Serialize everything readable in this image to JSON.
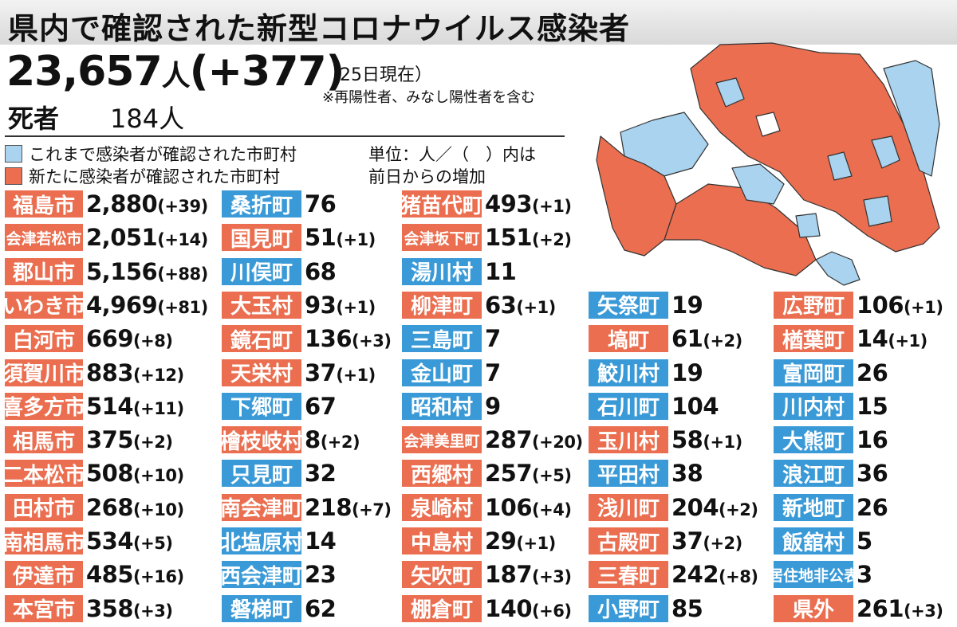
{
  "header": {
    "title": "県内で確認された新型コロナウイルス感染者",
    "total": "23,657",
    "total_unit": "人",
    "total_delta": "(+377)",
    "as_of": "（25日現在）",
    "note": "※再陽性者、みなし陽性者を含む",
    "deaths_label": "死者",
    "deaths_value": "184人"
  },
  "legend": {
    "confirmed_label": "これまで感染者が確認された市町村",
    "new_label": "新たに感染者が確認された市町村",
    "unit_line1": "単位：人／（　）内は",
    "unit_line2": "前日からの増加"
  },
  "colors": {
    "new": "#ea6e4f",
    "confirmed": "#3a9ad7",
    "none": "#ffffff"
  },
  "columns": [
    [
      {
        "name": "福島市",
        "total": "2,880",
        "delta": "(+39)",
        "status": "new"
      },
      {
        "name": "会津若松市",
        "total": "2,051",
        "delta": "(+14)",
        "status": "new"
      },
      {
        "name": "郡山市",
        "total": "5,156",
        "delta": "(+88)",
        "status": "new"
      },
      {
        "name": "いわき市",
        "total": "4,969",
        "delta": "(+81)",
        "status": "new"
      },
      {
        "name": "白河市",
        "total": "669",
        "delta": "(+8)",
        "status": "new"
      },
      {
        "name": "須賀川市",
        "total": "883",
        "delta": "(+12)",
        "status": "new"
      },
      {
        "name": "喜多方市",
        "total": "514",
        "delta": "(+11)",
        "status": "new"
      },
      {
        "name": "相馬市",
        "total": "375",
        "delta": "(+2)",
        "status": "new"
      },
      {
        "name": "二本松市",
        "total": "508",
        "delta": "(+10)",
        "status": "new"
      },
      {
        "name": "田村市",
        "total": "268",
        "delta": "(+10)",
        "status": "new"
      },
      {
        "name": "南相馬市",
        "total": "534",
        "delta": "(+5)",
        "status": "new"
      },
      {
        "name": "伊達市",
        "total": "485",
        "delta": "(+16)",
        "status": "new"
      },
      {
        "name": "本宮市",
        "total": "358",
        "delta": "(+3)",
        "status": "new"
      }
    ],
    [
      {
        "name": "桑折町",
        "total": "76",
        "delta": "",
        "status": "confirmed"
      },
      {
        "name": "国見町",
        "total": "51",
        "delta": "(+1)",
        "status": "new"
      },
      {
        "name": "川俣町",
        "total": "68",
        "delta": "",
        "status": "confirmed"
      },
      {
        "name": "大玉村",
        "total": "93",
        "delta": "(+1)",
        "status": "new"
      },
      {
        "name": "鏡石町",
        "total": "136",
        "delta": "(+3)",
        "status": "new"
      },
      {
        "name": "天栄村",
        "total": "37",
        "delta": "(+1)",
        "status": "new"
      },
      {
        "name": "下郷町",
        "total": "67",
        "delta": "",
        "status": "confirmed"
      },
      {
        "name": "檜枝岐村",
        "total": "8",
        "delta": "(+2)",
        "status": "new"
      },
      {
        "name": "只見町",
        "total": "32",
        "delta": "",
        "status": "confirmed"
      },
      {
        "name": "南会津町",
        "total": "218",
        "delta": "(+7)",
        "status": "new"
      },
      {
        "name": "北塩原村",
        "total": "14",
        "delta": "",
        "status": "confirmed"
      },
      {
        "name": "西会津町",
        "total": "23",
        "delta": "",
        "status": "confirmed"
      },
      {
        "name": "磐梯町",
        "total": "62",
        "delta": "",
        "status": "confirmed"
      }
    ],
    [
      {
        "name": "猪苗代町",
        "total": "493",
        "delta": "(+1)",
        "status": "new"
      },
      {
        "name": "会津坂下町",
        "total": "151",
        "delta": "(+2)",
        "status": "new"
      },
      {
        "name": "湯川村",
        "total": "11",
        "delta": "",
        "status": "confirmed"
      },
      {
        "name": "柳津町",
        "total": "63",
        "delta": "(+1)",
        "status": "new"
      },
      {
        "name": "三島町",
        "total": "7",
        "delta": "",
        "status": "confirmed"
      },
      {
        "name": "金山町",
        "total": "7",
        "delta": "",
        "status": "confirmed"
      },
      {
        "name": "昭和村",
        "total": "9",
        "delta": "",
        "status": "confirmed"
      },
      {
        "name": "会津美里町",
        "total": "287",
        "delta": "(+20)",
        "status": "new"
      },
      {
        "name": "西郷村",
        "total": "257",
        "delta": "(+5)",
        "status": "new"
      },
      {
        "name": "泉崎村",
        "total": "106",
        "delta": "(+4)",
        "status": "new"
      },
      {
        "name": "中島村",
        "total": "29",
        "delta": "(+1)",
        "status": "new"
      },
      {
        "name": "矢吹町",
        "total": "187",
        "delta": "(+3)",
        "status": "new"
      },
      {
        "name": "棚倉町",
        "total": "140",
        "delta": "(+6)",
        "status": "new"
      }
    ],
    [
      {
        "name": "矢祭町",
        "total": "19",
        "delta": "",
        "status": "confirmed"
      },
      {
        "name": "塙町",
        "total": "61",
        "delta": "(+2)",
        "status": "new"
      },
      {
        "name": "鮫川村",
        "total": "19",
        "delta": "",
        "status": "confirmed"
      },
      {
        "name": "石川町",
        "total": "104",
        "delta": "",
        "status": "confirmed"
      },
      {
        "name": "玉川村",
        "total": "58",
        "delta": "(+1)",
        "status": "new"
      },
      {
        "name": "平田村",
        "total": "38",
        "delta": "",
        "status": "confirmed"
      },
      {
        "name": "浅川町",
        "total": "204",
        "delta": "(+2)",
        "status": "new"
      },
      {
        "name": "古殿町",
        "total": "37",
        "delta": "(+2)",
        "status": "new"
      },
      {
        "name": "三春町",
        "total": "242",
        "delta": "(+8)",
        "status": "new"
      },
      {
        "name": "小野町",
        "total": "85",
        "delta": "",
        "status": "confirmed"
      }
    ],
    [
      {
        "name": "広野町",
        "total": "106",
        "delta": "(+1)",
        "status": "new"
      },
      {
        "name": "楢葉町",
        "total": "14",
        "delta": "(+1)",
        "status": "new"
      },
      {
        "name": "富岡町",
        "total": "26",
        "delta": "",
        "status": "confirmed"
      },
      {
        "name": "川内村",
        "total": "15",
        "delta": "",
        "status": "confirmed"
      },
      {
        "name": "大熊町",
        "total": "16",
        "delta": "",
        "status": "confirmed"
      },
      {
        "name": "浪江町",
        "total": "36",
        "delta": "",
        "status": "confirmed"
      },
      {
        "name": "新地町",
        "total": "26",
        "delta": "",
        "status": "confirmed"
      },
      {
        "name": "飯舘村",
        "total": "5",
        "delta": "",
        "status": "confirmed"
      },
      {
        "name": "居住地非公表",
        "total": "3",
        "delta": "",
        "status": "confirmed"
      },
      {
        "name": "県外",
        "total": "261",
        "delta": "(+3)",
        "status": "new"
      }
    ]
  ]
}
